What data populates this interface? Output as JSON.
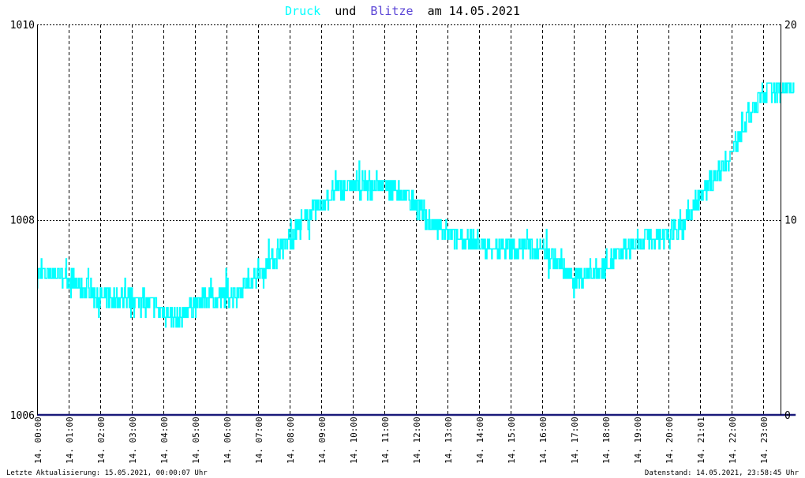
{
  "colors": {
    "background": "#ffffff",
    "plot_background": "#ffffff",
    "axis": "#000000",
    "grid": "#000000",
    "pressure_series": "#00ffff",
    "lightning_series": "#5b45d6",
    "zero_line": "#1a1a7a",
    "title_text": "#000000"
  },
  "title": {
    "word1": "Druck",
    "word2": "und",
    "word3": "Blitze",
    "word4": "am 14.05.2021"
  },
  "footer": {
    "left": "Letzte Aktualisierung: 15.05.2021, 00:00:07 Uhr",
    "right": "Datenstand: 14.05.2021, 23:58:45 Uhr"
  },
  "chart_data": {
    "type": "line",
    "grid": true,
    "x_tick_labels": [
      "14. 00:00",
      "14. 01:00",
      "14. 02:00",
      "14. 03:00",
      "14. 04:00",
      "14. 05:00",
      "14. 06:00",
      "14. 07:00",
      "14. 08:00",
      "14. 09:00",
      "14. 10:00",
      "14. 11:00",
      "14. 12:00",
      "14. 13:00",
      "14. 14:00",
      "14. 15:00",
      "14. 16:00",
      "14. 17:00",
      "14. 18:00",
      "14. 19:00",
      "14. 20:00",
      "14. 21:01",
      "14. 22:00",
      "14. 23:00"
    ],
    "y_left": {
      "ticks": [
        "1006",
        "1008",
        "1010"
      ],
      "ylim": [
        1006,
        1010
      ]
    },
    "y_right": {
      "ticks": [
        "0",
        "10",
        "20"
      ],
      "ylim": [
        0,
        20
      ]
    },
    "series": [
      {
        "name": "Druck",
        "axis": "left",
        "x_hours": [
          0,
          0.5,
          1,
          1.5,
          2,
          2.5,
          3,
          3.5,
          4,
          4.5,
          5,
          5.5,
          6,
          6.5,
          7,
          7.5,
          8,
          8.5,
          9,
          9.5,
          10,
          10.5,
          11,
          11.5,
          12,
          12.5,
          13,
          13.5,
          14,
          14.5,
          15,
          15.5,
          16,
          16.5,
          17,
          17.5,
          18,
          18.5,
          19,
          19.5,
          20,
          20.5,
          21,
          21.5,
          22,
          22.5,
          23,
          23.5,
          23.98
        ],
        "values": [
          1007.45,
          1007.45,
          1007.4,
          1007.3,
          1007.2,
          1007.2,
          1007.2,
          1007.15,
          1007.05,
          1007.0,
          1007.15,
          1007.2,
          1007.2,
          1007.3,
          1007.45,
          1007.6,
          1007.8,
          1008.0,
          1008.15,
          1008.3,
          1008.35,
          1008.35,
          1008.35,
          1008.3,
          1008.15,
          1007.95,
          1007.85,
          1007.8,
          1007.75,
          1007.7,
          1007.7,
          1007.75,
          1007.7,
          1007.55,
          1007.4,
          1007.45,
          1007.55,
          1007.65,
          1007.75,
          1007.8,
          1007.85,
          1007.95,
          1008.25,
          1008.45,
          1008.7,
          1009.05,
          1009.3,
          1009.35,
          1009.35
        ]
      },
      {
        "name": "Blitze",
        "axis": "right",
        "x_hours": [
          0,
          23.98
        ],
        "values": [
          0,
          0
        ]
      }
    ]
  }
}
